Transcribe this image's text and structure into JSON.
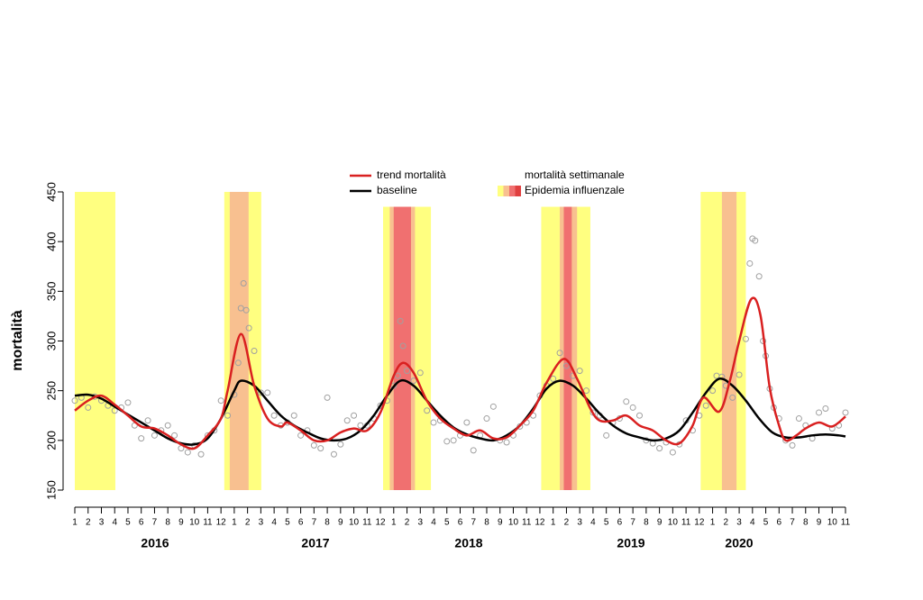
{
  "chart_data": {
    "type": "line",
    "ylabel": "mortalità",
    "ylim": [
      150,
      450
    ],
    "yticks": [
      150,
      200,
      250,
      300,
      350,
      400,
      450
    ],
    "xlim": [
      0,
      58
    ],
    "xticks": [
      {
        "value": 0,
        "label": "1"
      },
      {
        "value": 1,
        "label": "2"
      },
      {
        "value": 2,
        "label": "3"
      },
      {
        "value": 3,
        "label": "4"
      },
      {
        "value": 4,
        "label": "5"
      },
      {
        "value": 5,
        "label": "6"
      },
      {
        "value": 6,
        "label": "7"
      },
      {
        "value": 7,
        "label": "8"
      },
      {
        "value": 8,
        "label": "9"
      },
      {
        "value": 9,
        "label": "10"
      },
      {
        "value": 10,
        "label": "11"
      },
      {
        "value": 11,
        "label": "12"
      },
      {
        "value": 12,
        "label": "1"
      },
      {
        "value": 13,
        "label": "2"
      },
      {
        "value": 14,
        "label": "3"
      },
      {
        "value": 15,
        "label": "4"
      },
      {
        "value": 16,
        "label": "5"
      },
      {
        "value": 17,
        "label": "6"
      },
      {
        "value": 18,
        "label": "7"
      },
      {
        "value": 19,
        "label": "8"
      },
      {
        "value": 20,
        "label": "9"
      },
      {
        "value": 21,
        "label": "10"
      },
      {
        "value": 22,
        "label": "11"
      },
      {
        "value": 23,
        "label": "12"
      },
      {
        "value": 24,
        "label": "1"
      },
      {
        "value": 25,
        "label": "2"
      },
      {
        "value": 26,
        "label": "3"
      },
      {
        "value": 27,
        "label": "4"
      },
      {
        "value": 28,
        "label": "5"
      },
      {
        "value": 29,
        "label": "6"
      },
      {
        "value": 30,
        "label": "7"
      },
      {
        "value": 31,
        "label": "8"
      },
      {
        "value": 32,
        "label": "9"
      },
      {
        "value": 33,
        "label": "10"
      },
      {
        "value": 34,
        "label": "11"
      },
      {
        "value": 35,
        "label": "12"
      },
      {
        "value": 36,
        "label": "1"
      },
      {
        "value": 37,
        "label": "2"
      },
      {
        "value": 38,
        "label": "3"
      },
      {
        "value": 39,
        "label": "4"
      },
      {
        "value": 40,
        "label": "5"
      },
      {
        "value": 41,
        "label": "6"
      },
      {
        "value": 42,
        "label": "7"
      },
      {
        "value": 43,
        "label": "8"
      },
      {
        "value": 44,
        "label": "9"
      },
      {
        "value": 45,
        "label": "10"
      },
      {
        "value": 46,
        "label": "11"
      },
      {
        "value": 47,
        "label": "12"
      },
      {
        "value": 48,
        "label": "1"
      },
      {
        "value": 49,
        "label": "2"
      },
      {
        "value": 50,
        "label": "3"
      },
      {
        "value": 51,
        "label": "4"
      },
      {
        "value": 52,
        "label": "5"
      },
      {
        "value": 53,
        "label": "6"
      },
      {
        "value": 54,
        "label": "7"
      },
      {
        "value": 55,
        "label": "8"
      },
      {
        "value": 56,
        "label": "9"
      },
      {
        "value": 57,
        "label": "10"
      },
      {
        "value": 58,
        "label": "11"
      }
    ],
    "year_labels": [
      "2016",
      "2017",
      "2018",
      "2019",
      "2020"
    ],
    "epidemic_legend": "Epidemia influenzale",
    "epidemic_colors": [
      "#ffff80",
      "#f8c090",
      "#f07070",
      "#e04040"
    ],
    "epidemic_bands": [
      {
        "start": 0,
        "end": 3.05,
        "top": 450,
        "color": "#ffff80"
      },
      {
        "start": 11.25,
        "end": 14.03,
        "top": 450,
        "color": "#ffff80"
      },
      {
        "start": 11.66,
        "end": 13.08,
        "top": 450,
        "color": "#f8c090"
      },
      {
        "start": 23.2,
        "end": 26.8,
        "top": 435,
        "color": "#ffff80"
      },
      {
        "start": 23.7,
        "end": 25.6,
        "top": 435,
        "color": "#f8c090"
      },
      {
        "start": 24.0,
        "end": 25.3,
        "top": 435,
        "color": "#f07070"
      },
      {
        "start": 35.1,
        "end": 38.8,
        "top": 435,
        "color": "#ffff80"
      },
      {
        "start": 36.5,
        "end": 37.8,
        "top": 435,
        "color": "#f8c090"
      },
      {
        "start": 36.8,
        "end": 37.4,
        "top": 435,
        "color": "#f07070"
      },
      {
        "start": 47.1,
        "end": 50.5,
        "top": 450,
        "color": "#ffff80"
      },
      {
        "start": 48.7,
        "end": 49.8,
        "top": 450,
        "color": "#f8c090"
      }
    ],
    "series": [
      {
        "name": "trend mortalità",
        "color": "#d92020",
        "type": "line",
        "x": [
          0,
          1,
          2,
          3,
          4,
          5,
          6,
          7,
          8,
          9,
          10,
          11,
          11.5,
          12.5,
          13.5,
          14.5,
          15.5,
          16,
          17,
          18,
          19,
          20,
          21,
          22,
          23,
          24,
          24.7,
          25.5,
          26.5,
          27.5,
          28.5,
          29.5,
          30.5,
          31.5,
          32.5,
          33.5,
          34.5,
          35.5,
          36.8,
          37.8,
          38.8,
          39.5,
          40.5,
          41.5,
          42.5,
          43.5,
          44.5,
          45.5,
          46.5,
          47.3,
          48.5,
          49.3,
          50,
          50.9,
          51.6,
          52.3,
          53,
          53.5,
          54.3,
          55,
          56,
          57,
          58
        ],
        "values": [
          230,
          240,
          245,
          236,
          225,
          214,
          212,
          205,
          196,
          192,
          205,
          222,
          250,
          307,
          255,
          222,
          214,
          218,
          210,
          200,
          200,
          208,
          212,
          210,
          228,
          265,
          278,
          268,
          240,
          222,
          212,
          205,
          210,
          202,
          203,
          215,
          230,
          258,
          282,
          262,
          232,
          220,
          220,
          225,
          215,
          210,
          200,
          197,
          215,
          243,
          229,
          260,
          300,
          342,
          326,
          253,
          215,
          200,
          205,
          212,
          218,
          214,
          224
        ]
      },
      {
        "name": "baseline",
        "color": "#000000",
        "type": "line",
        "x": [
          0,
          1,
          2,
          3,
          4,
          5,
          6,
          7,
          8,
          9,
          10,
          11,
          12,
          12.5,
          13.5,
          14.5,
          15.5,
          16.5,
          17.5,
          18.5,
          19.5,
          20.5,
          21.5,
          22.5,
          23.5,
          24.5,
          25.5,
          26.5,
          27.5,
          28.5,
          29.5,
          30.5,
          31.5,
          32.5,
          33.5,
          34.5,
          35.5,
          36.5,
          37.5,
          38.5,
          39.5,
          40.5,
          41.5,
          42.5,
          43.5,
          44.5,
          45.5,
          46.5,
          47.5,
          48.5,
          49.5,
          50.5,
          51.5,
          52.5,
          53.5,
          54.5,
          55.5,
          56.5,
          57.5,
          58
        ],
        "values": [
          245,
          246,
          242,
          234,
          226,
          218,
          210,
          202,
          197,
          196,
          202,
          222,
          250,
          260,
          255,
          240,
          225,
          215,
          208,
          202,
          200,
          202,
          210,
          225,
          245,
          260,
          255,
          240,
          225,
          213,
          206,
          202,
          200,
          205,
          215,
          232,
          252,
          260,
          255,
          242,
          227,
          215,
          207,
          203,
          200,
          202,
          210,
          228,
          248,
          262,
          255,
          240,
          222,
          208,
          203,
          203,
          205,
          206,
          205,
          204
        ]
      },
      {
        "name": "mortalità settimanale",
        "color": "#a0a0a0",
        "type": "scatter",
        "x": [
          0,
          0.5,
          1,
          1.5,
          2,
          2.5,
          3,
          3.5,
          4,
          4.5,
          5,
          5.5,
          6,
          6.5,
          7,
          7.5,
          8,
          8.5,
          9,
          9.5,
          10,
          10.5,
          11,
          11.5,
          12,
          12.3,
          12.5,
          12.7,
          12.9,
          13.1,
          13.5,
          14,
          14.5,
          15,
          15.5,
          16,
          16.5,
          17,
          17.5,
          18,
          18.5,
          19,
          19.5,
          20,
          20.5,
          21,
          21.5,
          22,
          22.5,
          23,
          23.5,
          24,
          24.3,
          24.5,
          24.7,
          25,
          25.5,
          26,
          26.5,
          27,
          27.5,
          28,
          28.5,
          29,
          29.5,
          30,
          30.5,
          31,
          31.5,
          32,
          32.5,
          33,
          33.5,
          34,
          34.5,
          35,
          35.5,
          36,
          36.5,
          37,
          37.5,
          38,
          38.5,
          39,
          39.5,
          40,
          40.5,
          41,
          41.5,
          42,
          42.5,
          43,
          43.5,
          44,
          44.5,
          45,
          45.5,
          46,
          46.5,
          47,
          47.5,
          48,
          48.3,
          48.7,
          49,
          49.5,
          50,
          50.5,
          50.8,
          51,
          51.2,
          51.5,
          51.8,
          52,
          52.3,
          52.6,
          53,
          53.5,
          54,
          54.5,
          55,
          55.5,
          56,
          56.5,
          57,
          57.5,
          58
        ],
        "values": [
          240,
          243,
          233,
          244,
          240,
          235,
          230,
          233,
          238,
          215,
          202,
          220,
          205,
          210,
          215,
          205,
          192,
          188,
          195,
          186,
          205,
          210,
          240,
          225,
          246,
          278,
          333,
          358,
          331,
          313,
          290,
          248,
          248,
          225,
          215,
          218,
          225,
          205,
          210,
          195,
          192,
          243,
          186,
          196,
          220,
          225,
          215,
          215,
          222,
          235,
          240,
          255,
          265,
          320,
          295,
          270,
          260,
          268,
          230,
          218,
          220,
          199,
          200,
          205,
          218,
          190,
          205,
          222,
          234,
          200,
          198,
          205,
          214,
          218,
          225,
          245,
          255,
          262,
          288,
          275,
          265,
          270,
          250,
          228,
          225,
          205,
          218,
          222,
          239,
          233,
          225,
          200,
          197,
          192,
          198,
          188,
          196,
          220,
          210,
          225,
          235,
          250,
          265,
          264,
          255,
          243,
          266,
          302,
          378,
          403,
          401,
          365,
          300,
          285,
          252,
          233,
          222,
          200,
          195,
          222,
          215,
          202,
          228,
          232,
          212,
          215,
          228
        ]
      }
    ]
  }
}
